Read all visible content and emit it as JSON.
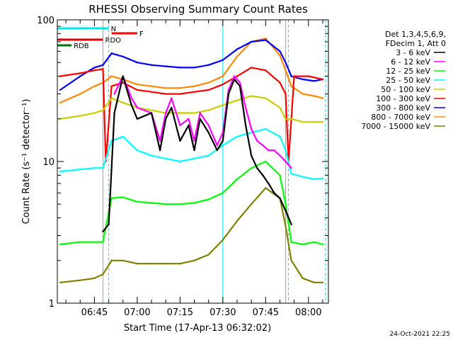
{
  "chart_data": {
    "type": "line",
    "title": "RHESSI Observing Summary Count Rates",
    "xlabel": "Start Time (17-Apr-13 06:32:02)",
    "ylabel": "Count Rate (s⁻¹ detector⁻¹)",
    "y_scale": "log",
    "ylim": [
      1,
      100
    ],
    "xlim": [
      "06:32",
      "08:07"
    ],
    "x_ticks": [
      "06:45",
      "07:00",
      "07:15",
      "07:30",
      "07:45",
      "08:00"
    ],
    "y_ticks": [
      "1",
      "10",
      "100"
    ],
    "grid": false,
    "legend_position": "top-right",
    "legend_header": [
      "Det 1,3,4,5,6,9,",
      "FDecim 1, Att 0"
    ],
    "footer_date": "24-Oct-2021 22:25",
    "flags": [
      {
        "label": "N",
        "color": "#00e5ee",
        "start": "06:32",
        "end": "06:50"
      },
      {
        "label": "F",
        "color": "#ff0000",
        "start": "06:51",
        "end": "07:00"
      },
      {
        "label": "RDO",
        "color": "#e00000",
        "start": "06:32",
        "end": "06:48"
      },
      {
        "label": "RDB",
        "color": "#007000",
        "start": "06:32",
        "end": "06:37"
      }
    ],
    "series": [
      {
        "name": "3 - 6 keV",
        "color": "#000000",
        "x": [
          "06:48",
          "06:50",
          "06:52",
          "06:55",
          "06:58",
          "07:00",
          "07:05",
          "07:08",
          "07:10",
          "07:12",
          "07:15",
          "07:18",
          "07:20",
          "07:22",
          "07:25",
          "07:28",
          "07:30",
          "07:32",
          "07:34",
          "07:36",
          "07:38",
          "07:40",
          "07:42",
          "07:44",
          "07:46",
          "07:48",
          "07:50",
          "07:52",
          "07:54"
        ],
        "y": [
          3.2,
          3.6,
          22,
          40,
          25,
          20,
          22,
          12,
          20,
          24,
          14,
          18,
          12,
          20,
          16,
          12,
          14,
          30,
          38,
          34,
          18,
          11,
          9,
          8,
          7,
          6,
          5.5,
          4.5,
          3.6
        ]
      },
      {
        "name": "6 - 12 keV",
        "color": "#ff00ff",
        "x": [
          "06:52",
          "06:55",
          "06:58",
          "07:00",
          "07:05",
          "07:08",
          "07:10",
          "07:12",
          "07:15",
          "07:18",
          "07:20",
          "07:22",
          "07:25",
          "07:28",
          "07:30",
          "07:32",
          "07:34",
          "07:36",
          "07:38",
          "07:40",
          "07:42",
          "07:44",
          "07:46",
          "07:48",
          "07:50",
          "07:52",
          "07:54"
        ],
        "y": [
          30,
          40,
          28,
          24,
          22,
          14,
          22,
          28,
          18,
          20,
          14,
          22,
          18,
          13,
          16,
          32,
          40,
          36,
          24,
          17,
          14,
          13,
          12,
          12,
          11,
          10,
          9
        ]
      },
      {
        "name": "12 - 25 keV",
        "color": "#00ff00",
        "x": [
          "06:33",
          "06:40",
          "06:45",
          "06:48",
          "06:51",
          "06:55",
          "07:00",
          "07:05",
          "07:10",
          "07:15",
          "07:20",
          "07:25",
          "07:30",
          "07:35",
          "07:40",
          "07:45",
          "07:50",
          "07:52",
          "07:54",
          "07:58",
          "08:02",
          "08:05"
        ],
        "y": [
          2.6,
          2.7,
          2.7,
          2.7,
          5.5,
          5.6,
          5.2,
          5.1,
          5.0,
          5.0,
          5.1,
          5.4,
          6,
          7.5,
          9,
          10,
          8,
          5,
          2.7,
          2.6,
          2.7,
          2.6
        ]
      },
      {
        "name": "25 - 50 keV",
        "color": "#00ffff",
        "x": [
          "06:33",
          "06:40",
          "06:45",
          "06:48",
          "06:51",
          "06:55",
          "07:00",
          "07:05",
          "07:10",
          "07:15",
          "07:20",
          "07:25",
          "07:30",
          "07:35",
          "07:40",
          "07:45",
          "07:50",
          "07:52",
          "07:54",
          "07:58",
          "08:02",
          "08:05"
        ],
        "y": [
          8.5,
          8.8,
          9.0,
          9.0,
          14,
          15,
          12,
          11,
          10.5,
          10,
          10.5,
          11,
          13,
          15,
          16,
          17,
          15,
          12,
          8.2,
          7.8,
          7.5,
          7.6
        ]
      },
      {
        "name": "50 - 100 keV",
        "color": "#cccc00",
        "x": [
          "06:33",
          "06:40",
          "06:45",
          "06:48",
          "06:51",
          "06:55",
          "07:00",
          "07:05",
          "07:10",
          "07:15",
          "07:20",
          "07:25",
          "07:30",
          "07:35",
          "07:40",
          "07:45",
          "07:50",
          "07:52",
          "07:54",
          "07:58",
          "08:02",
          "08:05"
        ],
        "y": [
          20,
          21,
          22,
          23,
          28,
          26,
          24,
          23,
          22,
          22,
          22,
          23,
          25,
          27,
          29,
          28,
          24,
          20,
          20,
          19,
          19,
          19
        ]
      },
      {
        "name": "100 - 300 keV",
        "color": "#ff0000",
        "x": [
          "06:33",
          "06:40",
          "06:45",
          "06:48",
          "06:49",
          "06:51",
          "06:55",
          "07:00",
          "07:05",
          "07:10",
          "07:15",
          "07:20",
          "07:25",
          "07:30",
          "07:35",
          "07:40",
          "07:45",
          "07:50",
          "07:52",
          "07:53",
          "07:55",
          "08:00",
          "08:05"
        ],
        "y": [
          40,
          42,
          44,
          45,
          10,
          34,
          36,
          32,
          31,
          30,
          30,
          31,
          32,
          35,
          40,
          46,
          44,
          36,
          30,
          10,
          40,
          40,
          38
        ]
      },
      {
        "name": "300 - 800 keV",
        "color": "#0000ff",
        "x": [
          "06:33",
          "06:40",
          "06:45",
          "06:48",
          "06:51",
          "06:55",
          "07:00",
          "07:05",
          "07:10",
          "07:15",
          "07:20",
          "07:25",
          "07:30",
          "07:35",
          "07:40",
          "07:45",
          "07:50",
          "07:52",
          "07:54",
          "07:58",
          "08:02",
          "08:05"
        ],
        "y": [
          32,
          40,
          46,
          48,
          58,
          55,
          50,
          48,
          47,
          46,
          46,
          48,
          52,
          62,
          70,
          72,
          60,
          50,
          40,
          38,
          37,
          38
        ]
      },
      {
        "name": "800 - 7000 keV",
        "color": "#ff8800",
        "x": [
          "06:33",
          "06:40",
          "06:45",
          "06:48",
          "06:51",
          "06:55",
          "07:00",
          "07:05",
          "07:10",
          "07:15",
          "07:20",
          "07:25",
          "07:30",
          "07:35",
          "07:40",
          "07:45",
          "07:50",
          "07:52",
          "07:54",
          "07:58",
          "08:02",
          "08:05"
        ],
        "y": [
          26,
          30,
          34,
          36,
          40,
          38,
          35,
          34,
          33,
          33,
          34,
          36,
          40,
          55,
          70,
          74,
          56,
          44,
          34,
          30,
          29,
          28
        ]
      },
      {
        "name": "7000 - 15000 keV",
        "color": "#808000",
        "x": [
          "06:33",
          "06:40",
          "06:45",
          "06:48",
          "06:51",
          "06:55",
          "07:00",
          "07:05",
          "07:10",
          "07:15",
          "07:20",
          "07:25",
          "07:30",
          "07:35",
          "07:40",
          "07:45",
          "07:50",
          "07:52",
          "07:54",
          "07:58",
          "08:02",
          "08:05"
        ],
        "y": [
          1.4,
          1.45,
          1.5,
          1.6,
          2.0,
          2.0,
          1.9,
          1.9,
          1.9,
          1.9,
          2.0,
          2.2,
          2.8,
          3.8,
          5.0,
          6.5,
          5.5,
          3.5,
          2.0,
          1.5,
          1.4,
          1.4
        ]
      }
    ],
    "gap_markers": {
      "solid": [
        "06:48",
        "07:30",
        "07:52"
      ],
      "dashed": [
        "06:50",
        "07:53",
        "08:06"
      ]
    }
  }
}
